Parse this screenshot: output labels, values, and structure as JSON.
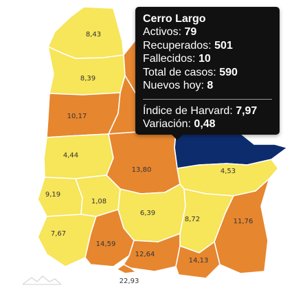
{
  "colors": {
    "yellow": "#f7e55a",
    "orange": "#e6862f",
    "navy": "#0d2c6e",
    "tooltip_bg": "#111111"
  },
  "map": {
    "departments": [
      {
        "id": "artigas",
        "value": "8,43",
        "level": "yellow"
      },
      {
        "id": "salto",
        "value": "8,39",
        "level": "yellow"
      },
      {
        "id": "rivera",
        "value": "",
        "level": "orange"
      },
      {
        "id": "paysandu",
        "value": "10,17",
        "level": "orange"
      },
      {
        "id": "tacuarembo",
        "value": "",
        "level": "orange"
      },
      {
        "id": "cerro-largo",
        "value": "",
        "level": "navy"
      },
      {
        "id": "rio-negro",
        "value": "4,44",
        "level": "yellow"
      },
      {
        "id": "durazno",
        "value": "13,80",
        "level": "orange"
      },
      {
        "id": "treinta-y-tres",
        "value": "4,53",
        "level": "yellow"
      },
      {
        "id": "soriano",
        "value": "9,19",
        "level": "yellow"
      },
      {
        "id": "flores",
        "value": "1,08",
        "level": "yellow"
      },
      {
        "id": "florida",
        "value": "6,39",
        "level": "yellow"
      },
      {
        "id": "lavalleja",
        "value": "8,72",
        "level": "yellow"
      },
      {
        "id": "rocha",
        "value": "11,76",
        "level": "orange"
      },
      {
        "id": "colonia",
        "value": "7,67",
        "level": "yellow"
      },
      {
        "id": "san-jose",
        "value": "14,59",
        "level": "orange"
      },
      {
        "id": "canelones",
        "value": "12,64",
        "level": "orange"
      },
      {
        "id": "maldonado",
        "value": "14,13",
        "level": "orange"
      },
      {
        "id": "montevideo",
        "value": "22,93",
        "level": "orange"
      }
    ]
  },
  "tooltip": {
    "title": "Cerro Largo",
    "activos_label": "Activos:",
    "activos_value": "79",
    "recuperados_label": "Recuperados:",
    "recuperados_value": "501",
    "fallecidos_label": "Fallecidos:",
    "fallecidos_value": "10",
    "total_label": "Total de casos:",
    "total_value": "590",
    "nuevos_label": "Nuevos hoy:",
    "nuevos_value": "8",
    "harvard_label": "Índice de Harvard:",
    "harvard_value": "7,97",
    "variacion_label": "Variación:",
    "variacion_value": "0,48"
  },
  "logo": {
    "icon": "mountain-line-logo-icon"
  }
}
